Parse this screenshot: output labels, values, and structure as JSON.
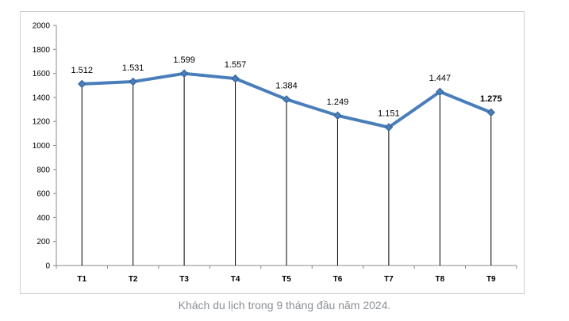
{
  "chart_data": {
    "type": "line",
    "categories": [
      "T1",
      "T2",
      "T3",
      "T4",
      "T5",
      "T6",
      "T7",
      "T8",
      "T9"
    ],
    "series": [
      {
        "values": [
          1512,
          1531,
          1599,
          1557,
          1384,
          1249,
          1151,
          1447,
          1275
        ],
        "labels": [
          "1.512",
          "1.531",
          "1.599",
          "1.557",
          "1.384",
          "1.249",
          "1.151",
          "1.447",
          "1.275"
        ],
        "color": "#4a7ebb"
      }
    ],
    "y_ticks": [
      0,
      200,
      400,
      600,
      800,
      1000,
      1200,
      1400,
      1600,
      1800,
      2000
    ],
    "ylim": [
      0,
      2000
    ],
    "grid": false,
    "drop_lines": true
  },
  "caption": "Khách du lịch trong 9 tháng đầu năm 2024."
}
